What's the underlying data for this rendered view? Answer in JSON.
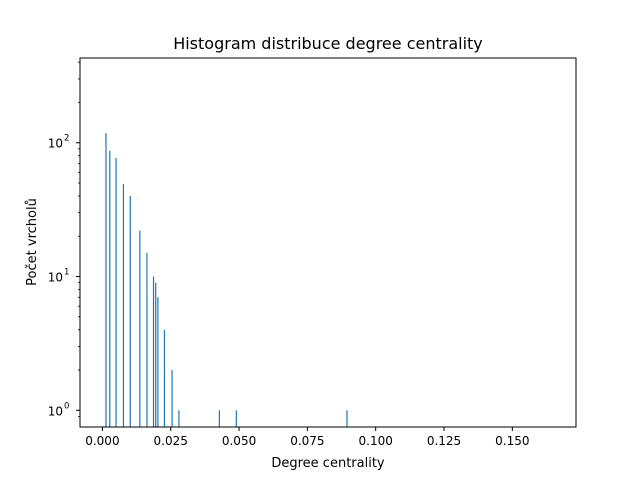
{
  "chart_data": {
    "type": "bar",
    "title": "Histogram distribuce degree centrality",
    "xlabel": "Degree centrality",
    "ylabel": "Počet vrcholů",
    "yscale": "log",
    "xlim": [
      -0.0082,
      0.1733
    ],
    "ylim": [
      0.75,
      430
    ],
    "xticks": [
      0.0,
      0.025,
      0.05,
      0.075,
      0.1,
      0.125,
      0.15
    ],
    "xtick_labels": [
      "0.000",
      "0.025",
      "0.050",
      "0.075",
      "0.100",
      "0.125",
      "0.150"
    ],
    "yticks": [
      1,
      10,
      100
    ],
    "ytick_labels": [
      "10",
      "10",
      "10"
    ],
    "ytick_exponents": [
      "0",
      "1",
      "2"
    ],
    "grid": false,
    "bar_color": "#1f77b4",
    "bars": [
      {
        "x": 0.0013,
        "value": 118
      },
      {
        "x": 0.0027,
        "value": 87
      },
      {
        "x": 0.005,
        "value": 77
      },
      {
        "x": 0.0077,
        "value": 49
      },
      {
        "x": 0.0102,
        "value": 40
      },
      {
        "x": 0.0137,
        "value": 22
      },
      {
        "x": 0.0163,
        "value": 15
      },
      {
        "x": 0.0187,
        "value": 10
      },
      {
        "x": 0.0195,
        "value": 9
      },
      {
        "x": 0.0203,
        "value": 7
      },
      {
        "x": 0.0227,
        "value": 4
      },
      {
        "x": 0.0255,
        "value": 2
      },
      {
        "x": 0.028,
        "value": 1
      },
      {
        "x": 0.0428,
        "value": 1
      },
      {
        "x": 0.049,
        "value": 1
      },
      {
        "x": 0.0895,
        "value": 1
      }
    ]
  }
}
